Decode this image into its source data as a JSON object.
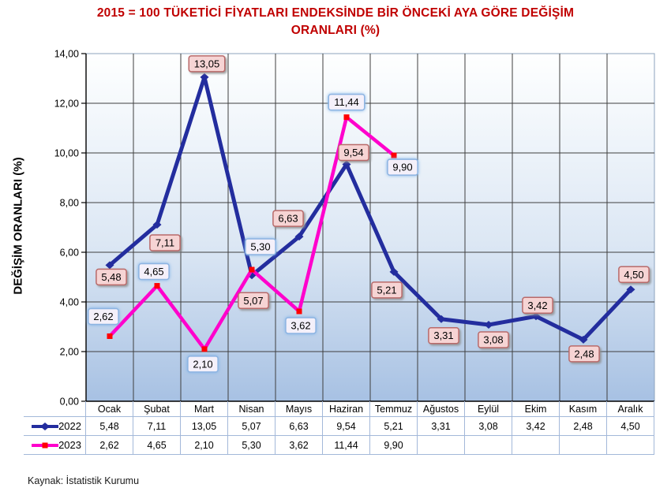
{
  "title": {
    "line1": "2015 = 100 TÜKETİCİ FİYATLARI ENDEKSİNDE BİR ÖNCEKİ AYA GÖRE DEĞİŞİM",
    "line2": "ORANLARI (%)",
    "color": "#C00000"
  },
  "y_axis_title": "DEĞİŞİM ORANLARI (%)",
  "source_note": "Kaynak: İstatistik Kurumu",
  "colors": {
    "grid": "#3F3F3F",
    "axis": "#000000",
    "plot_border": "#8CA3BE",
    "plot_gradient_top": "#FEFFFF",
    "plot_gradient_mid": "#DCE7F4",
    "plot_gradient_bottom": "#A7C1E3",
    "table_border": "#A3B8D9"
  },
  "chart_data": {
    "type": "line",
    "title": "2015 = 100 TÜKETİCİ FİYATLARI ENDEKSİNDE BİR ÖNCEKİ AYA GÖRE DEĞİŞİM ORANLARI (%)",
    "ylabel": "DEĞİŞİM ORANLARI (%)",
    "xlabel": "",
    "ylim": [
      0,
      14
    ],
    "y_tick_step": 2,
    "y_tick_labels": [
      "0,00",
      "2,00",
      "4,00",
      "6,00",
      "8,00",
      "10,00",
      "12,00",
      "14,00"
    ],
    "grid": true,
    "legend_position": "table-left",
    "categories": [
      "Ocak",
      "Şubat",
      "Mart",
      "Nisan",
      "Mayıs",
      "Haziran",
      "Temmuz",
      "Ağustos",
      "Eylül",
      "Ekim",
      "Kasım",
      "Aralık"
    ],
    "series": [
      {
        "name": "2022",
        "color": "#232D9E",
        "line_width": 5,
        "marker": "diamond",
        "marker_color": "#232D9E",
        "values": [
          5.48,
          7.11,
          13.05,
          5.07,
          6.63,
          9.54,
          5.21,
          3.31,
          3.08,
          3.42,
          2.48,
          4.5
        ],
        "labels": [
          "5,48",
          "7,11",
          "13,05",
          "5,07",
          "6,63",
          "9,54",
          "5,21",
          "3,31",
          "3,08",
          "3,42",
          "2,48",
          "4,50"
        ],
        "label_style": {
          "fill": "#F6D4D4",
          "border": "#B96A6A",
          "shadow": "#8E8E8E"
        },
        "label_offsets": [
          [
            2,
            15
          ],
          [
            10,
            23
          ],
          [
            3,
            -17
          ],
          [
            2,
            32
          ],
          [
            -14,
            -23
          ],
          [
            9,
            -15
          ],
          [
            -9,
            23
          ],
          [
            3,
            21
          ],
          [
            6,
            19
          ],
          [
            2,
            -14
          ],
          [
            1,
            18
          ],
          [
            4,
            -19
          ]
        ]
      },
      {
        "name": "2023",
        "color": "#FF00CC",
        "line_width": 4.5,
        "marker": "square",
        "marker_color": "#FF0000",
        "values": [
          2.62,
          4.65,
          2.1,
          5.3,
          3.62,
          11.44,
          9.9
        ],
        "labels": [
          "2,62",
          "4,65",
          "2,10",
          "5,30",
          "3,62",
          "11,44",
          "9,90"
        ],
        "label_style": {
          "fill": "#F4F0FA",
          "border": "#8DB4E2",
          "shadow": "#7EB2E8"
        },
        "label_offsets": [
          [
            -8,
            -25
          ],
          [
            -4,
            -18
          ],
          [
            -2,
            19
          ],
          [
            11,
            -29
          ],
          [
            2,
            18
          ],
          [
            0,
            -19
          ],
          [
            11,
            15
          ]
        ]
      }
    ]
  }
}
